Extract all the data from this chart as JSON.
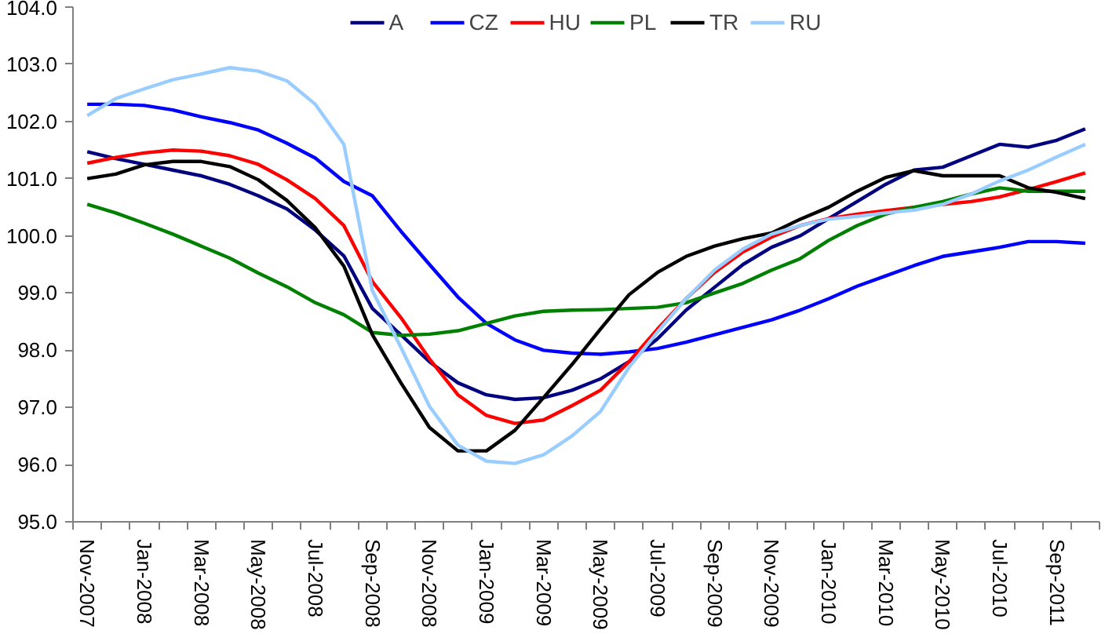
{
  "chart_data": {
    "type": "line",
    "categories": [
      "Nov-2007",
      null,
      "Jan-2008",
      null,
      "Mar-2008",
      null,
      "May-2008",
      null,
      "Jul-2008",
      null,
      "Sep-2008",
      null,
      "Nov-2008",
      null,
      "Jan-2009",
      null,
      "Mar-2009",
      null,
      "May-2009",
      null,
      "Jul-2009",
      null,
      "Sep-2009",
      null,
      "Nov-2009",
      null,
      "Jan-2010",
      null,
      "Mar-2010",
      null,
      "May-2010",
      null,
      "Jul-2010",
      null,
      "Sep-2011",
      null
    ],
    "series": [
      {
        "name": "A",
        "color": "#000080",
        "values": [
          101.47,
          101.35,
          101.25,
          101.15,
          101.05,
          100.9,
          100.7,
          100.47,
          100.1,
          99.65,
          98.73,
          98.27,
          97.8,
          97.43,
          97.22,
          97.14,
          97.17,
          97.3,
          97.5,
          97.8,
          98.2,
          98.7,
          99.1,
          99.5,
          99.8,
          100.0,
          100.3,
          100.6,
          100.9,
          101.15,
          101.2,
          101.4,
          101.6,
          101.55,
          101.67,
          101.87
        ]
      },
      {
        "name": "CZ",
        "color": "#0000ff",
        "values": [
          102.3,
          102.3,
          102.28,
          102.2,
          102.08,
          101.98,
          101.85,
          101.62,
          101.36,
          100.95,
          100.7,
          100.08,
          99.5,
          98.93,
          98.47,
          98.18,
          98.0,
          97.95,
          97.93,
          97.97,
          98.03,
          98.14,
          98.27,
          98.4,
          98.53,
          98.7,
          98.9,
          99.12,
          99.3,
          99.48,
          99.64,
          99.72,
          99.8,
          99.9,
          99.9,
          99.87
        ]
      },
      {
        "name": "HU",
        "color": "#ff0000",
        "values": [
          101.27,
          101.37,
          101.45,
          101.5,
          101.48,
          101.4,
          101.25,
          100.98,
          100.65,
          100.18,
          99.2,
          98.57,
          97.85,
          97.22,
          96.86,
          96.72,
          96.78,
          97.03,
          97.3,
          97.8,
          98.37,
          98.9,
          99.36,
          99.72,
          99.98,
          100.18,
          100.3,
          100.38,
          100.44,
          100.5,
          100.55,
          100.6,
          100.68,
          100.81,
          100.95,
          101.1
        ]
      },
      {
        "name": "PL",
        "color": "#008000",
        "values": [
          100.55,
          100.4,
          100.22,
          100.03,
          99.82,
          99.61,
          99.35,
          99.11,
          98.83,
          98.62,
          98.31,
          98.26,
          98.28,
          98.34,
          98.47,
          98.6,
          98.68,
          98.7,
          98.71,
          98.73,
          98.75,
          98.83,
          99.0,
          99.17,
          99.4,
          99.6,
          99.92,
          100.18,
          100.38,
          100.5,
          100.6,
          100.73,
          100.84,
          100.78,
          100.78,
          100.78
        ]
      },
      {
        "name": "TR",
        "color": "#000000",
        "values": [
          101.0,
          101.08,
          101.24,
          101.3,
          101.3,
          101.21,
          100.98,
          100.62,
          100.14,
          99.47,
          98.27,
          97.43,
          96.65,
          96.24,
          96.24,
          96.6,
          97.17,
          97.75,
          98.37,
          98.97,
          99.36,
          99.64,
          99.82,
          99.95,
          100.05,
          100.29,
          100.5,
          100.78,
          101.02,
          101.14,
          101.05,
          101.05,
          101.05,
          100.84,
          100.76,
          100.65
        ]
      },
      {
        "name": "RU",
        "color": "#99ccff",
        "values": [
          102.1,
          102.4,
          102.57,
          102.73,
          102.83,
          102.94,
          102.88,
          102.71,
          102.3,
          101.6,
          99.04,
          98.05,
          97.02,
          96.34,
          96.06,
          96.02,
          96.17,
          96.5,
          96.93,
          97.7,
          98.32,
          98.9,
          99.4,
          99.77,
          100.03,
          100.18,
          100.29,
          100.34,
          100.4,
          100.45,
          100.55,
          100.73,
          100.96,
          101.15,
          101.38,
          101.6
        ]
      }
    ],
    "ylim": [
      95,
      104
    ],
    "yticks": [
      {
        "value": 95,
        "label": "95.0"
      },
      {
        "value": 96,
        "label": "96.0"
      },
      {
        "value": 97,
        "label": "97.0"
      },
      {
        "value": 98,
        "label": "98.0"
      },
      {
        "value": 99,
        "label": "99.0"
      },
      {
        "value": 100,
        "label": "100.0"
      },
      {
        "value": 101,
        "label": "101.0"
      },
      {
        "value": 102,
        "label": "102.0"
      },
      {
        "value": 103,
        "label": "103.0"
      },
      {
        "value": 104,
        "label": "104.0"
      }
    ],
    "grid": false,
    "legend": "top",
    "marker": "none",
    "line_style": "solid"
  }
}
